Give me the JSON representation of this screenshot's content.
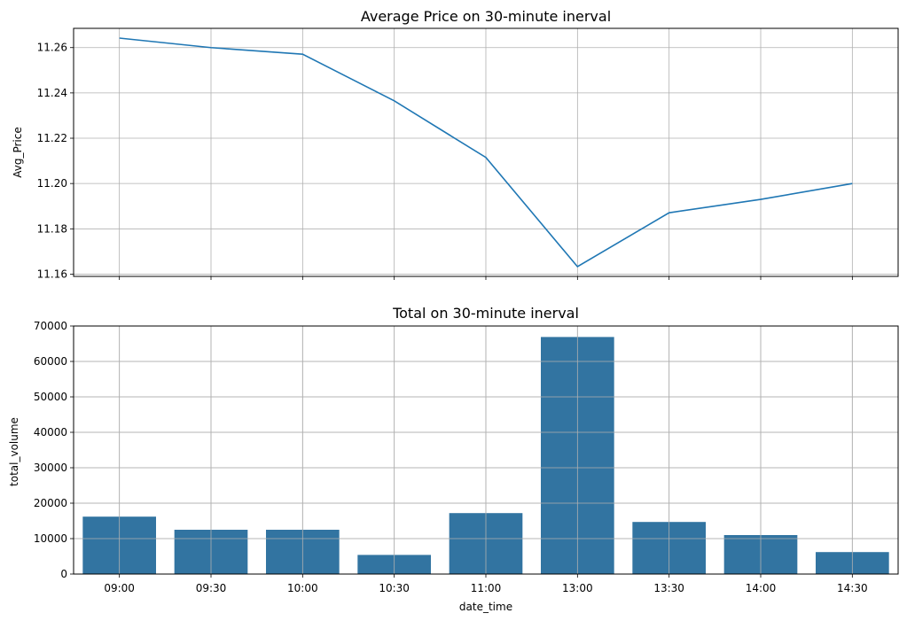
{
  "chart_data": [
    {
      "type": "line",
      "title": "Average Price on 30-minute inerval",
      "xlabel": "",
      "ylabel": "Avg_Price",
      "x": [
        "09:00",
        "09:30",
        "10:00",
        "10:30",
        "11:00",
        "13:00",
        "13:30",
        "14:00",
        "14:30"
      ],
      "series": [
        {
          "values": [
            11.2642,
            11.26,
            11.2571,
            11.2365,
            11.2115,
            11.1633,
            11.1871,
            11.193,
            11.2
          ]
        }
      ],
      "ylim": [
        11.159,
        11.2685
      ],
      "yticks": [
        "11.16",
        "11.18",
        "11.20",
        "11.22",
        "11.24",
        "11.26"
      ],
      "grid": true,
      "color": "#1f77b4"
    },
    {
      "type": "bar",
      "title": "Total on 30-minute inerval",
      "xlabel": "date_time",
      "ylabel": "total_volume",
      "categories": [
        "09:00",
        "09:30",
        "10:00",
        "10:30",
        "11:00",
        "13:00",
        "13:30",
        "14:00",
        "14:30"
      ],
      "values": [
        16200,
        12500,
        12500,
        5400,
        17200,
        66900,
        14700,
        11000,
        6200
      ],
      "ylim": [
        0,
        70000
      ],
      "yticks": [
        "0",
        "10000",
        "20000",
        "30000",
        "40000",
        "50000",
        "60000",
        "70000"
      ],
      "grid": true,
      "color": "#3274a1"
    }
  ]
}
